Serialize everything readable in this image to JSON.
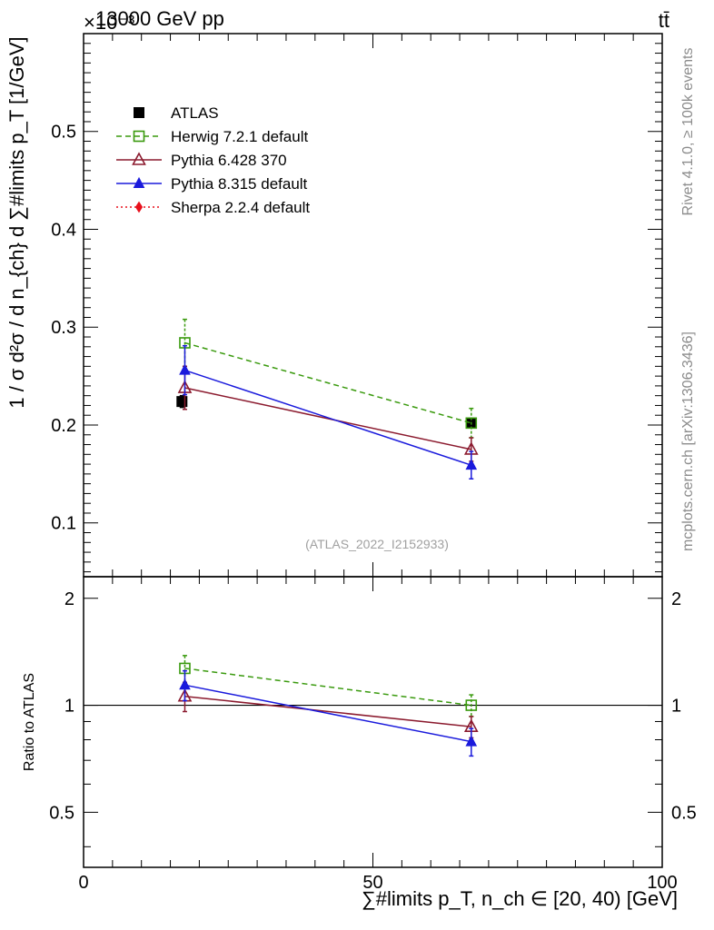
{
  "chart_data": [
    {
      "type": "scatter",
      "panel": "main",
      "title": "13000 GeV pp",
      "title_right": "tt̄",
      "exponent_label": "×10⁻³",
      "xlabel": "∑#limits p_T, n_ch ∈ [20, 40) [GeV]",
      "ylabel": "1 / σ d²σ / d n_{ch} d ∑#limits p_T [1/GeV]",
      "xlim": [
        0,
        100
      ],
      "ylim": [
        0.045,
        0.6
      ],
      "yticks": [
        0.1,
        0.2,
        0.3,
        0.4,
        0.5
      ],
      "ytick_labels": [
        "0.1",
        "0.2",
        "0.3",
        "0.4",
        "0.5"
      ],
      "watermark": "(ATLAS_2022_I2152933)",
      "side_text_top": "Rivet 4.1.0, ≥ 100k events",
      "side_text_bottom": "mcplots.cern.ch [arXiv:1306.3436]",
      "legend": {
        "position": "top-left",
        "entries": [
          {
            "label": "ATLAS",
            "color": "#000000",
            "marker": "square-filled",
            "line": "none"
          },
          {
            "label": "Herwig 7.2.1 default",
            "color": "#3a9a0e",
            "marker": "square-open",
            "line": "dashed"
          },
          {
            "label": "Pythia 6.428 370",
            "color": "#8b1a2e",
            "marker": "triangle-open",
            "line": "solid"
          },
          {
            "label": "Pythia 8.315 default",
            "color": "#1a1adc",
            "marker": "triangle-filled",
            "line": "solid"
          },
          {
            "label": "Sherpa 2.2.4 default",
            "color": "#e8101c",
            "marker": "diamond-filled",
            "line": "dotted"
          }
        ]
      },
      "series": [
        {
          "name": "ATLAS",
          "color": "#000000",
          "marker": "square-filled",
          "line": "none",
          "x": [
            17,
            67
          ],
          "y": [
            0.224,
            0.202
          ],
          "err": [
            0.006,
            0.005
          ]
        },
        {
          "name": "Herwig 7.2.1 default",
          "color": "#3a9a0e",
          "marker": "square-open",
          "line": "dashed",
          "x": [
            17.5,
            67
          ],
          "y": [
            0.284,
            0.202
          ],
          "err": [
            0.024,
            0.015
          ]
        },
        {
          "name": "Pythia 6.428 370",
          "color": "#8b1a2e",
          "marker": "triangle-open",
          "line": "solid",
          "x": [
            17.5,
            67
          ],
          "y": [
            0.238,
            0.175
          ],
          "err": [
            0.022,
            0.012
          ]
        },
        {
          "name": "Pythia 8.315 default",
          "color": "#1a1adc",
          "marker": "triangle-filled",
          "line": "solid",
          "x": [
            17.5,
            67
          ],
          "y": [
            0.256,
            0.159
          ],
          "err": [
            0.025,
            0.014
          ]
        }
      ]
    },
    {
      "type": "scatter",
      "panel": "ratio",
      "ylabel": "Ratio to ATLAS",
      "xlim": [
        0,
        100
      ],
      "ylim": [
        0.35,
        2.3
      ],
      "yticks": [
        0.5,
        1,
        2
      ],
      "ytick_labels": [
        "0.5",
        "1",
        "2"
      ],
      "xticks": [
        0,
        50,
        100
      ],
      "xtick_labels": [
        "0",
        "50",
        "100"
      ],
      "reference_line": 1,
      "series": [
        {
          "name": "Herwig 7.2.1 default",
          "color": "#3a9a0e",
          "marker": "square-open",
          "line": "dashed",
          "x": [
            17.5,
            67
          ],
          "y": [
            1.27,
            1.0
          ],
          "err": [
            0.11,
            0.07
          ]
        },
        {
          "name": "Pythia 6.428 370",
          "color": "#8b1a2e",
          "marker": "triangle-open",
          "line": "solid",
          "x": [
            17.5,
            67
          ],
          "y": [
            1.06,
            0.87
          ],
          "err": [
            0.1,
            0.06
          ]
        },
        {
          "name": "Pythia 8.315 default",
          "color": "#1a1adc",
          "marker": "triangle-filled",
          "line": "solid",
          "x": [
            17.5,
            67
          ],
          "y": [
            1.14,
            0.79
          ],
          "err": [
            0.11,
            0.07
          ]
        }
      ]
    }
  ]
}
